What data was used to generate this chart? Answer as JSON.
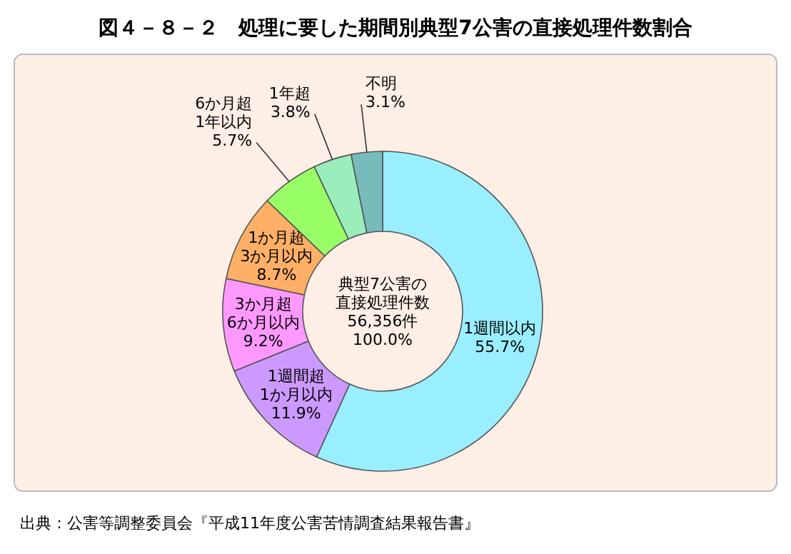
{
  "chart_data": {
    "type": "donut",
    "title": "図４－８－２　処理に要した期間別典型7公害の直接処理件数割合",
    "categories": [
      "1週間以内",
      "1週間超\n1か月以内",
      "3か月超\n6か月以内",
      "1か月超\n3か月以内",
      "6か月超\n1年以内",
      "1年超",
      "不明"
    ],
    "values": [
      55.7,
      11.9,
      9.2,
      8.7,
      5.7,
      3.8,
      3.1
    ],
    "value_labels": [
      "55.7%",
      "11.9%",
      "9.2%",
      "8.7%",
      "5.7%",
      "3.8%",
      "3.1%"
    ],
    "colors": [
      "#99eeff",
      "#cc99ff",
      "#ff99ff",
      "#ffb066",
      "#99ff66",
      "#99eebb",
      "#77bbbb"
    ],
    "annotations": [
      "典型7公害の",
      "直接処理件数",
      "56,356件",
      "100.0%",
      "出典：公害等調整委員会『平成11年度公害苦情調査結果報告書』"
    ]
  }
}
